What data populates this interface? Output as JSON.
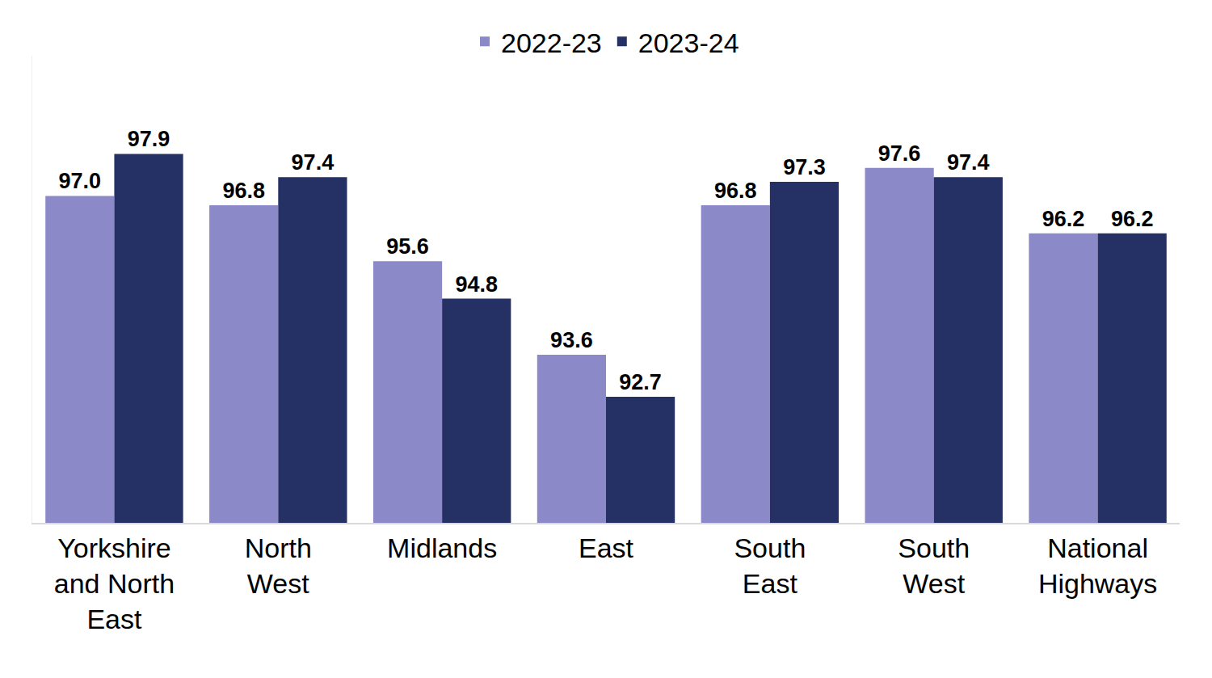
{
  "chart_data": {
    "type": "bar",
    "categories": [
      "Yorkshire and North East",
      "North West",
      "Midlands",
      "East",
      "South East",
      "South West",
      "National Highways"
    ],
    "series": [
      {
        "name": "2022-23",
        "color": "#8b89c8",
        "values": [
          97.0,
          96.8,
          95.6,
          93.6,
          96.8,
          97.6,
          96.2
        ],
        "value_labels": [
          "97.0",
          "96.8",
          "95.6",
          "93.6",
          "96.8",
          "97.6",
          "96.2"
        ]
      },
      {
        "name": "2023-24",
        "color": "#253165",
        "values": [
          97.9,
          97.4,
          94.8,
          92.7,
          97.3,
          97.4,
          96.2
        ],
        "value_labels": [
          "97.9",
          "97.4",
          "94.8",
          "92.7",
          "97.3",
          "97.4",
          "96.2"
        ]
      }
    ],
    "ylim": [
      90,
      100
    ],
    "yticks": [],
    "grid": false,
    "legend": "top",
    "data_labels": true,
    "tick_labels": "x"
  }
}
